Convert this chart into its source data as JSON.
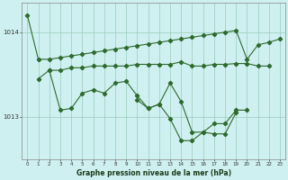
{
  "title": "Graphe pression niveau de la mer (hPa)",
  "bg_color": "#cff0f0",
  "line_color": "#2d6a2d",
  "grid_color": "#99ccbb",
  "ylim": [
    1012.5,
    1014.35
  ],
  "yticks": [
    1013,
    1014
  ],
  "line1_x": [
    0,
    1,
    2,
    3,
    4,
    5,
    6,
    7,
    8,
    9,
    10,
    11,
    12,
    13,
    14,
    15,
    16,
    17,
    18,
    19,
    20,
    21,
    22,
    23
  ],
  "line1_y": [
    1014.2,
    1013.68,
    1013.68,
    1013.7,
    1013.72,
    1013.74,
    1013.76,
    1013.78,
    1013.8,
    1013.82,
    1013.84,
    1013.86,
    1013.88,
    1013.9,
    1013.92,
    1013.94,
    1013.96,
    1013.98,
    1014.0,
    1014.02,
    1013.68,
    1013.85,
    1013.88,
    1013.92
  ],
  "line2_x": [
    2,
    3,
    4,
    5,
    6,
    7,
    8,
    9,
    10,
    11,
    12,
    13,
    14,
    15,
    16,
    17,
    18,
    19,
    20,
    21,
    22
  ],
  "line2_y": [
    1013.55,
    1013.55,
    1013.58,
    1013.58,
    1013.6,
    1013.6,
    1013.6,
    1013.6,
    1013.62,
    1013.62,
    1013.62,
    1013.62,
    1013.65,
    1013.6,
    1013.6,
    1013.62,
    1013.62,
    1013.63,
    1013.63,
    1013.6,
    1013.6
  ],
  "line3_x": [
    1,
    2,
    3,
    4,
    5,
    6,
    7,
    8,
    9,
    10,
    11,
    12,
    13,
    14,
    15,
    16,
    17,
    18,
    19,
    20
  ],
  "line3_y": [
    1013.45,
    1013.55,
    1013.08,
    1013.1,
    1013.28,
    1013.32,
    1013.28,
    1013.4,
    1013.42,
    1013.25,
    1013.1,
    1013.15,
    1013.4,
    1013.18,
    1012.82,
    1012.82,
    1012.92,
    1012.92,
    1013.08,
    1013.08
  ],
  "line4_x": [
    10,
    11,
    12,
    13,
    14,
    15,
    16,
    17,
    18,
    19
  ],
  "line4_y": [
    1013.2,
    1013.1,
    1013.15,
    1012.98,
    1012.72,
    1012.72,
    1012.82,
    1012.8,
    1012.8,
    1013.05
  ]
}
